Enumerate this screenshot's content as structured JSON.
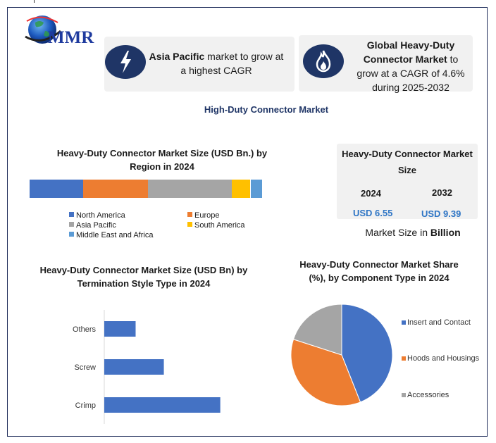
{
  "logo": {
    "text": "MMR"
  },
  "highlights": [
    {
      "bold": "Asia Pacific",
      "text": " market to grow at a highest CAGR",
      "icon": "lightning-icon"
    },
    {
      "bold": "Global Heavy-Duty Connector Market",
      "text": " to grow at a CAGR of 4.6% during 2025-2032",
      "icon": "flame-icon"
    }
  ],
  "main_title": "High-Duty Connector Market",
  "market_size": {
    "title": "Heavy-Duty Connector Market Size",
    "years": [
      "2024",
      "2032"
    ],
    "values": [
      "USD 6.55",
      "USD 9.39"
    ],
    "caption_prefix": "Market Size in ",
    "caption_bold": "Billion"
  },
  "chart_data": [
    {
      "type": "bar",
      "orientation": "stacked-horizontal",
      "title": "Heavy-Duty Connector Market  Size (USD Bn.) by Region in 2024",
      "categories": [
        "North America",
        "Europe",
        "Asia Pacific",
        "South America",
        "Middle East and Africa"
      ],
      "values": [
        23,
        28,
        36,
        8,
        5
      ],
      "colors": [
        "#4472c4",
        "#ed7d31",
        "#a5a5a5",
        "#ffc000",
        "#5b9bd5"
      ],
      "legend": "bottom"
    },
    {
      "type": "bar",
      "orientation": "horizontal",
      "title": "Heavy-Duty Connector Market Size (USD Bn) by Termination Style Type  in 2024",
      "categories": [
        "Others",
        "Screw",
        "Crimp"
      ],
      "values": [
        1.0,
        1.9,
        3.7
      ],
      "color": "#4472c4",
      "xlim": [
        0,
        4
      ],
      "grid": false
    },
    {
      "type": "pie",
      "title": "Heavy-Duty Connector Market Share (%), by Component Type in 2024",
      "categories": [
        "Insert and Contact",
        "Hoods and Housings",
        "Accessories"
      ],
      "values": [
        44,
        36,
        20
      ],
      "colors": [
        "#4472c4",
        "#ed7d31",
        "#a5a5a5"
      ],
      "legend": "right"
    }
  ]
}
